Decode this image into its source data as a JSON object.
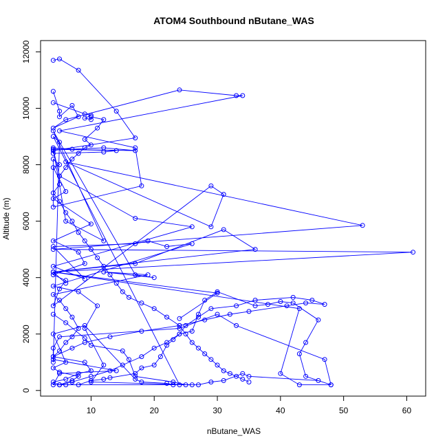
{
  "chart_data": {
    "type": "line",
    "title": "ATOM4 Southbound nButane_WAS",
    "xlabel": "nButane_WAS",
    "ylabel": "Altitude (m)",
    "xlim": [
      2,
      63
    ],
    "ylim": [
      -200,
      12400
    ],
    "x_ticks": [
      10,
      20,
      30,
      40,
      50,
      60
    ],
    "y_ticks": [
      0,
      2000,
      4000,
      6000,
      8000,
      10000,
      12000
    ],
    "grid": false,
    "legend": "none",
    "series_color": "#0000ff",
    "series": [
      {
        "x": [
          4,
          5,
          8,
          14,
          17,
          4,
          4,
          12,
          14,
          4,
          5,
          17,
          26,
          4,
          9,
          4,
          17,
          19,
          22,
          26,
          4,
          8,
          11,
          9,
          12,
          10,
          26,
          4,
          5,
          14,
          4,
          4,
          5,
          24,
          30,
          33,
          47,
          48,
          43,
          40,
          43,
          4,
          6
        ],
        "y": [
          11700,
          11750,
          11350,
          9900,
          8950,
          8500,
          8400,
          8450,
          8500,
          8550,
          7600,
          6100,
          5800,
          4400,
          3950,
          5100,
          5200,
          5300,
          5100,
          5200,
          3700,
          3500,
          3000,
          2200,
          900,
          300,
          200,
          200,
          600,
          700,
          1100,
          1500,
          1900,
          2200,
          2700,
          2300,
          1100,
          200,
          200,
          600,
          2900,
          4200,
          3800
        ]
      },
      {
        "x": [
          4,
          5,
          5,
          7,
          8,
          4,
          6,
          24,
          33,
          34,
          5,
          17,
          18,
          4,
          4,
          5,
          4,
          6,
          4,
          10,
          4,
          8,
          9,
          4,
          6,
          5,
          4,
          29,
          31,
          29,
          6,
          53,
          4,
          61,
          4,
          17,
          31,
          36,
          4,
          30,
          24
        ],
        "y": [
          10600,
          9900,
          9700,
          10100,
          9700,
          9300,
          9600,
          10650,
          10450,
          10450,
          9200,
          8600,
          7250,
          6500,
          8200,
          8000,
          7900,
          7050,
          6800,
          5900,
          5300,
          4900,
          4500,
          4100,
          3900,
          3600,
          3000,
          7250,
          6950,
          5800,
          8100,
          5850,
          5000,
          4900,
          4200,
          4500,
          5700,
          5000,
          4200,
          3450,
          2550
        ]
      },
      {
        "x": [
          4,
          6,
          9,
          10,
          15,
          16,
          17,
          23,
          25,
          27,
          29,
          31,
          34,
          35,
          46,
          48,
          44,
          43,
          44,
          46,
          42,
          40,
          38,
          36,
          30,
          28,
          27,
          26,
          24,
          23,
          22,
          21,
          20,
          18,
          17,
          13,
          12,
          10,
          8,
          6,
          5
        ],
        "y": [
          2700,
          2400,
          1850,
          1600,
          1400,
          1100,
          500,
          300,
          200,
          200,
          300,
          350,
          600,
          500,
          350,
          200,
          500,
          1300,
          1700,
          2500,
          3100,
          3150,
          3050,
          3000,
          3500,
          3200,
          2700,
          2100,
          2000,
          1800,
          1600,
          1200,
          900,
          800,
          600,
          450,
          400,
          350,
          200,
          200,
          200
        ]
      },
      {
        "x": [
          4,
          7,
          9,
          13,
          18,
          24,
          28,
          32,
          35,
          41,
          44,
          47,
          45,
          42,
          36,
          33,
          29,
          27,
          25,
          24,
          22,
          20,
          18,
          15,
          13,
          10,
          7,
          5
        ],
        "y": [
          1200,
          1500,
          1700,
          1900,
          2100,
          2300,
          2500,
          2700,
          2800,
          3000,
          3100,
          3050,
          3200,
          3300,
          3200,
          3000,
          2900,
          2600,
          2300,
          2000,
          1700,
          1500,
          1200,
          900,
          700,
          500,
          300,
          200
        ]
      },
      {
        "x": [
          4,
          9,
          10,
          9,
          10,
          10,
          12,
          11,
          9,
          10,
          9,
          8,
          7,
          6,
          5,
          5,
          4,
          5,
          6,
          7,
          8,
          9,
          10,
          11,
          12,
          13,
          14,
          15,
          16,
          18,
          20,
          22,
          24,
          25,
          26,
          27,
          28,
          29,
          30,
          31,
          32,
          33,
          34,
          35
        ],
        "y": [
          10200,
          9800,
          9750,
          9650,
          9600,
          9700,
          9600,
          9300,
          8900,
          8700,
          8600,
          8400,
          8200,
          7900,
          7600,
          7300,
          7000,
          6700,
          6300,
          6000,
          5600,
          5300,
          5000,
          4700,
          4400,
          4100,
          3800,
          3500,
          3300,
          3100,
          2900,
          2600,
          2300,
          2000,
          1700,
          1500,
          1300,
          1100,
          900,
          700,
          600,
          500,
          400,
          300
        ]
      },
      {
        "x": [
          4,
          7,
          12,
          17,
          4,
          6,
          12,
          4,
          17,
          20,
          12,
          19,
          4,
          5,
          6,
          7,
          8,
          7,
          6,
          5,
          4,
          9,
          10,
          8,
          6,
          4,
          5,
          7,
          8,
          5,
          4,
          6,
          4,
          9,
          17,
          18,
          22,
          23,
          24,
          4,
          5,
          4
        ],
        "y": [
          8600,
          8550,
          8600,
          8500,
          8550,
          6000,
          5300,
          9200,
          4100,
          4000,
          4200,
          4100,
          3400,
          3200,
          2900,
          2600,
          2200,
          1900,
          1700,
          1400,
          1200,
          1000,
          700,
          600,
          400,
          300,
          200,
          350,
          500,
          650,
          800,
          1000,
          2000,
          2300,
          400,
          300,
          250,
          200,
          200,
          9000,
          8800,
          1000
        ]
      }
    ]
  }
}
